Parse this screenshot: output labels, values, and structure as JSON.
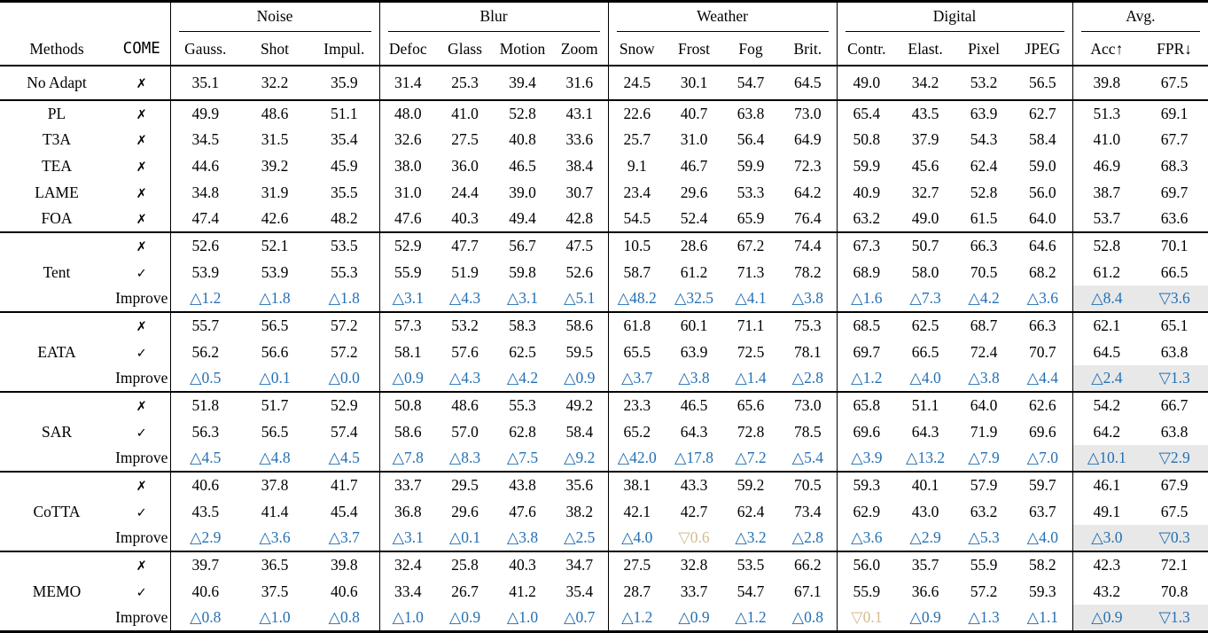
{
  "table": {
    "corner": {
      "methods": "Methods",
      "come": "COME"
    },
    "groups": [
      {
        "label": "Noise",
        "cols": [
          "Gauss.",
          "Shot",
          "Impul."
        ]
      },
      {
        "label": "Blur",
        "cols": [
          "Defoc",
          "Glass",
          "Motion",
          "Zoom"
        ]
      },
      {
        "label": "Weather",
        "cols": [
          "Snow",
          "Frost",
          "Fog",
          "Brit."
        ]
      },
      {
        "label": "Digital",
        "cols": [
          "Contr.",
          "Elast.",
          "Pixel",
          "JPEG"
        ]
      },
      {
        "label": "Avg.",
        "cols": [
          "Acc↑",
          "FPR↓"
        ]
      }
    ],
    "marks": {
      "no": "✗",
      "yes": "✓",
      "improve": "Improve"
    },
    "blocks": [
      {
        "method": "No Adapt",
        "rows": [
          {
            "come": "no",
            "cells": [
              "35.1",
              "32.2",
              "35.9",
              "31.4",
              "25.3",
              "39.4",
              "31.6",
              "24.5",
              "30.1",
              "54.7",
              "64.5",
              "49.0",
              "34.2",
              "53.2",
              "56.5",
              "39.8",
              "67.5"
            ]
          }
        ]
      },
      {
        "method": "PL",
        "group_with_next": true,
        "rows": [
          {
            "come": "no",
            "cells": [
              "49.9",
              "48.6",
              "51.1",
              "48.0",
              "41.0",
              "52.8",
              "43.1",
              "22.6",
              "40.7",
              "63.8",
              "73.0",
              "65.4",
              "43.5",
              "63.9",
              "62.7",
              "51.3",
              "69.1"
            ]
          }
        ]
      },
      {
        "method": "T3A",
        "group_with_next": true,
        "rows": [
          {
            "come": "no",
            "cells": [
              "34.5",
              "31.5",
              "35.4",
              "32.6",
              "27.5",
              "40.8",
              "33.6",
              "25.7",
              "31.0",
              "56.4",
              "64.9",
              "50.8",
              "37.9",
              "54.3",
              "58.4",
              "41.0",
              "67.7"
            ]
          }
        ]
      },
      {
        "method": "TEA",
        "group_with_next": true,
        "rows": [
          {
            "come": "no",
            "cells": [
              "44.6",
              "39.2",
              "45.9",
              "38.0",
              "36.0",
              "46.5",
              "38.4",
              "9.1",
              "46.7",
              "59.9",
              "72.3",
              "59.9",
              "45.6",
              "62.4",
              "59.0",
              "46.9",
              "68.3"
            ]
          }
        ]
      },
      {
        "method": "LAME",
        "group_with_next": true,
        "rows": [
          {
            "come": "no",
            "cells": [
              "34.8",
              "31.9",
              "35.5",
              "31.0",
              "24.4",
              "39.0",
              "30.7",
              "23.4",
              "29.6",
              "53.3",
              "64.2",
              "40.9",
              "32.7",
              "52.8",
              "56.0",
              "38.7",
              "69.7"
            ]
          }
        ]
      },
      {
        "method": "FOA",
        "rows": [
          {
            "come": "no",
            "cells": [
              "47.4",
              "42.6",
              "48.2",
              "47.6",
              "40.3",
              "49.4",
              "42.8",
              "54.5",
              "52.4",
              "65.9",
              "76.4",
              "63.2",
              "49.0",
              "61.5",
              "64.0",
              "53.7",
              "63.6"
            ]
          }
        ]
      },
      {
        "method": "Tent",
        "rows": [
          {
            "come": "no",
            "cells": [
              "52.6",
              "52.1",
              "53.5",
              "52.9",
              "47.7",
              "56.7",
              "47.5",
              "10.5",
              "28.6",
              "67.2",
              "74.4",
              "67.3",
              "50.7",
              "66.3",
              "64.6",
              "52.8",
              "70.1"
            ]
          },
          {
            "come": "yes",
            "cells": [
              "53.9",
              "53.9",
              "55.3",
              "55.9",
              "51.9",
              "59.8",
              "52.6",
              "58.7",
              "61.2",
              "71.3",
              "78.2",
              "68.9",
              "58.0",
              "70.5",
              "68.2",
              "61.2",
              "66.5"
            ]
          },
          {
            "come": "improve",
            "bad": [],
            "cells": [
              "△1.2",
              "△1.8",
              "△1.8",
              "△3.1",
              "△4.3",
              "△3.1",
              "△5.1",
              "△48.2",
              "△32.5",
              "△4.1",
              "△3.8",
              "△1.6",
              "△7.3",
              "△4.2",
              "△3.6",
              "△8.4",
              "▽3.6"
            ]
          }
        ]
      },
      {
        "method": "EATA",
        "rows": [
          {
            "come": "no",
            "cells": [
              "55.7",
              "56.5",
              "57.2",
              "57.3",
              "53.2",
              "58.3",
              "58.6",
              "61.8",
              "60.1",
              "71.1",
              "75.3",
              "68.5",
              "62.5",
              "68.7",
              "66.3",
              "62.1",
              "65.1"
            ]
          },
          {
            "come": "yes",
            "cells": [
              "56.2",
              "56.6",
              "57.2",
              "58.1",
              "57.6",
              "62.5",
              "59.5",
              "65.5",
              "63.9",
              "72.5",
              "78.1",
              "69.7",
              "66.5",
              "72.4",
              "70.7",
              "64.5",
              "63.8"
            ]
          },
          {
            "come": "improve",
            "bad": [],
            "cells": [
              "△0.5",
              "△0.1",
              "△0.0",
              "△0.9",
              "△4.3",
              "△4.2",
              "△0.9",
              "△3.7",
              "△3.8",
              "△1.4",
              "△2.8",
              "△1.2",
              "△4.0",
              "△3.8",
              "△4.4",
              "△2.4",
              "▽1.3"
            ]
          }
        ]
      },
      {
        "method": "SAR",
        "rows": [
          {
            "come": "no",
            "cells": [
              "51.8",
              "51.7",
              "52.9",
              "50.8",
              "48.6",
              "55.3",
              "49.2",
              "23.3",
              "46.5",
              "65.6",
              "73.0",
              "65.8",
              "51.1",
              "64.0",
              "62.6",
              "54.2",
              "66.7"
            ]
          },
          {
            "come": "yes",
            "cells": [
              "56.3",
              "56.5",
              "57.4",
              "58.6",
              "57.0",
              "62.8",
              "58.4",
              "65.2",
              "64.3",
              "72.8",
              "78.5",
              "69.6",
              "64.3",
              "71.9",
              "69.6",
              "64.2",
              "63.8"
            ]
          },
          {
            "come": "improve",
            "bad": [],
            "cells": [
              "△4.5",
              "△4.8",
              "△4.5",
              "△7.8",
              "△8.3",
              "△7.5",
              "△9.2",
              "△42.0",
              "△17.8",
              "△7.2",
              "△5.4",
              "△3.9",
              "△13.2",
              "△7.9",
              "△7.0",
              "△10.1",
              "▽2.9"
            ]
          }
        ]
      },
      {
        "method": "CoTTA",
        "rows": [
          {
            "come": "no",
            "cells": [
              "40.6",
              "37.8",
              "41.7",
              "33.7",
              "29.5",
              "43.8",
              "35.6",
              "38.1",
              "43.3",
              "59.2",
              "70.5",
              "59.3",
              "40.1",
              "57.9",
              "59.7",
              "46.1",
              "67.9"
            ]
          },
          {
            "come": "yes",
            "cells": [
              "43.5",
              "41.4",
              "45.4",
              "36.8",
              "29.6",
              "47.6",
              "38.2",
              "42.1",
              "42.7",
              "62.4",
              "73.4",
              "62.9",
              "43.0",
              "63.2",
              "63.7",
              "49.1",
              "67.5"
            ]
          },
          {
            "come": "improve",
            "bad": [
              8
            ],
            "cells": [
              "△2.9",
              "△3.6",
              "△3.7",
              "△3.1",
              "△0.1",
              "△3.8",
              "△2.5",
              "△4.0",
              "▽0.6",
              "△3.2",
              "△2.8",
              "△3.6",
              "△2.9",
              "△5.3",
              "△4.0",
              "△3.0",
              "▽0.3"
            ]
          }
        ]
      },
      {
        "method": "MEMO",
        "rows": [
          {
            "come": "no",
            "cells": [
              "39.7",
              "36.5",
              "39.8",
              "32.4",
              "25.8",
              "40.3",
              "34.7",
              "27.5",
              "32.8",
              "53.5",
              "66.2",
              "56.0",
              "35.7",
              "55.9",
              "58.2",
              "42.3",
              "72.1"
            ]
          },
          {
            "come": "yes",
            "cells": [
              "40.6",
              "37.5",
              "40.6",
              "33.4",
              "26.7",
              "41.2",
              "35.4",
              "28.7",
              "33.7",
              "54.7",
              "67.1",
              "55.9",
              "36.6",
              "57.2",
              "59.3",
              "43.2",
              "70.8"
            ]
          },
          {
            "come": "improve",
            "bad": [
              11
            ],
            "cells": [
              "△0.8",
              "△1.0",
              "△0.8",
              "△1.0",
              "△0.9",
              "△1.0",
              "△0.7",
              "△1.2",
              "△0.9",
              "△1.2",
              "△0.8",
              "▽0.1",
              "△0.9",
              "△1.3",
              "△1.1",
              "△0.9",
              "▽1.3"
            ]
          }
        ]
      }
    ],
    "col_widths": {
      "method": 128,
      "come": 64,
      "data": [
        79,
        78,
        79,
        64,
        65,
        65,
        64,
        65,
        64,
        64,
        65,
        67,
        66,
        66,
        67,
        77,
        76
      ]
    },
    "group_start_indices": [
      0,
      3,
      7,
      11,
      15
    ],
    "avg_start_index": 15
  },
  "colors": {
    "improve_good": "#2470b3",
    "improve_bad": "#d4ba8e",
    "avg_highlight": "#e8e8e8",
    "rule": "#000000"
  }
}
